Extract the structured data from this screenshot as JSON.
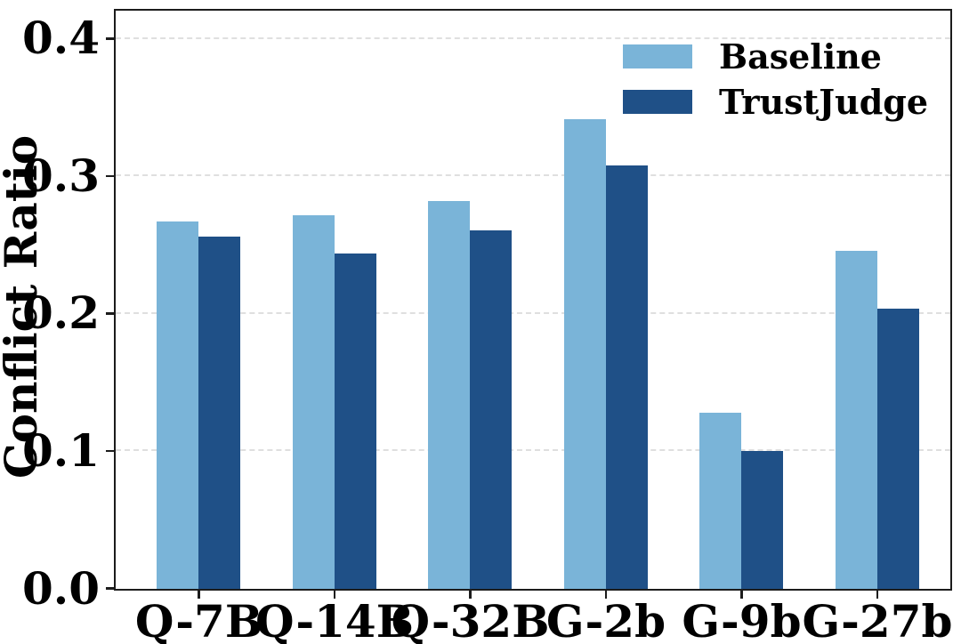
{
  "chart_data": {
    "type": "bar",
    "title": "",
    "xlabel": "",
    "ylabel": "Conflict Ratio",
    "categories": [
      "Q-7B",
      "Q-14B",
      "Q-32B",
      "G-2b",
      "G-9b",
      "G-27b"
    ],
    "series": [
      {
        "name": "Baseline",
        "color": "#7ab4d8",
        "values": [
          0.267,
          0.272,
          0.282,
          0.342,
          0.128,
          0.246
        ]
      },
      {
        "name": "TrustJudge",
        "color": "#1f5087",
        "values": [
          0.256,
          0.244,
          0.261,
          0.308,
          0.1,
          0.204
        ]
      }
    ],
    "ylim": [
      0.0,
      0.42
    ],
    "yticks": [
      0.0,
      0.1,
      0.2,
      0.3,
      0.4
    ],
    "ytick_labels": [
      "0.0",
      "0.1",
      "0.2",
      "0.3",
      "0.4"
    ],
    "grid": "horizontal dashed",
    "grid_color": "#dfdfdf",
    "axis_color": "#1c1c1c",
    "background_color": "#ffffff",
    "legend_position": "upper right"
  }
}
